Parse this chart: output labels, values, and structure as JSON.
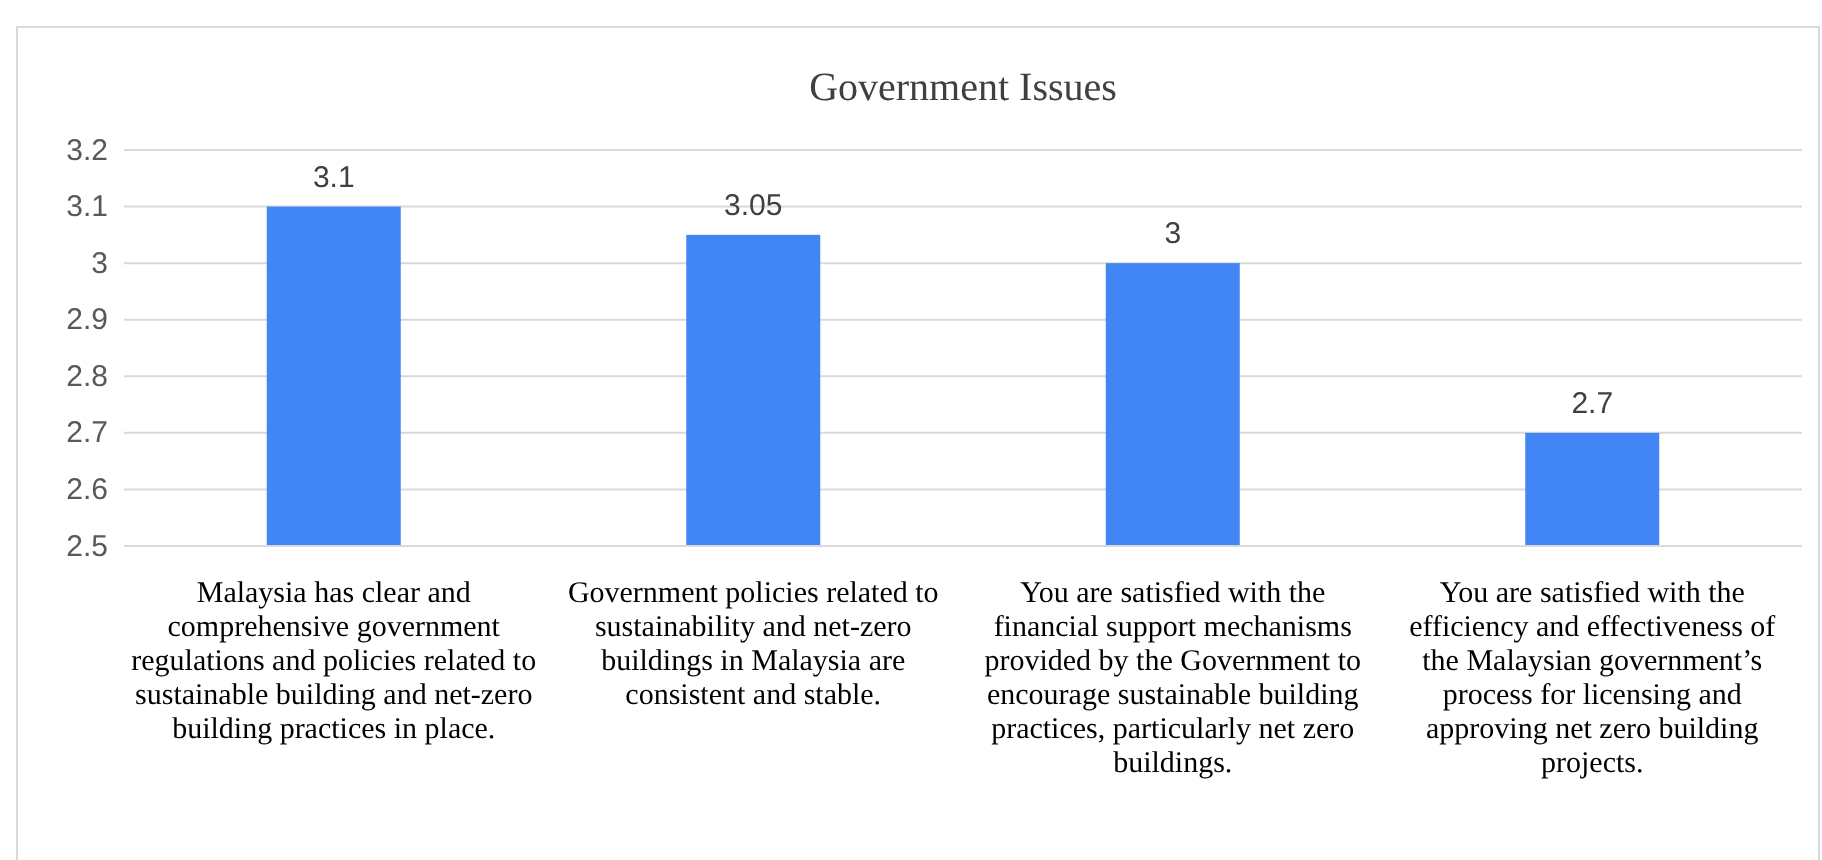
{
  "chart_data": {
    "type": "bar",
    "title": "Government Issues",
    "categories": [
      "Malaysia has clear and comprehensive government regulations and policies related to sustainable building and net-zero building practices in place.",
      "Government policies related to sustainability and net-zero buildings in Malaysia are consistent and stable.",
      "You are satisfied with the financial support mechanisms provided by the Government to encourage sustainable building practices, particularly net zero buildings.",
      "You are satisfied with the efficiency and effectiveness of the Malaysian government’s process for licensing and approving net zero building projects."
    ],
    "values": [
      3.1,
      3.05,
      3,
      2.7
    ],
    "color": "#4285f4",
    "ylim": [
      2.5,
      3.2
    ],
    "yticks": [
      2.5,
      2.6,
      2.7,
      2.8,
      2.9,
      3,
      3.1,
      3.2
    ],
    "grid": "y",
    "data_labels": true
  }
}
